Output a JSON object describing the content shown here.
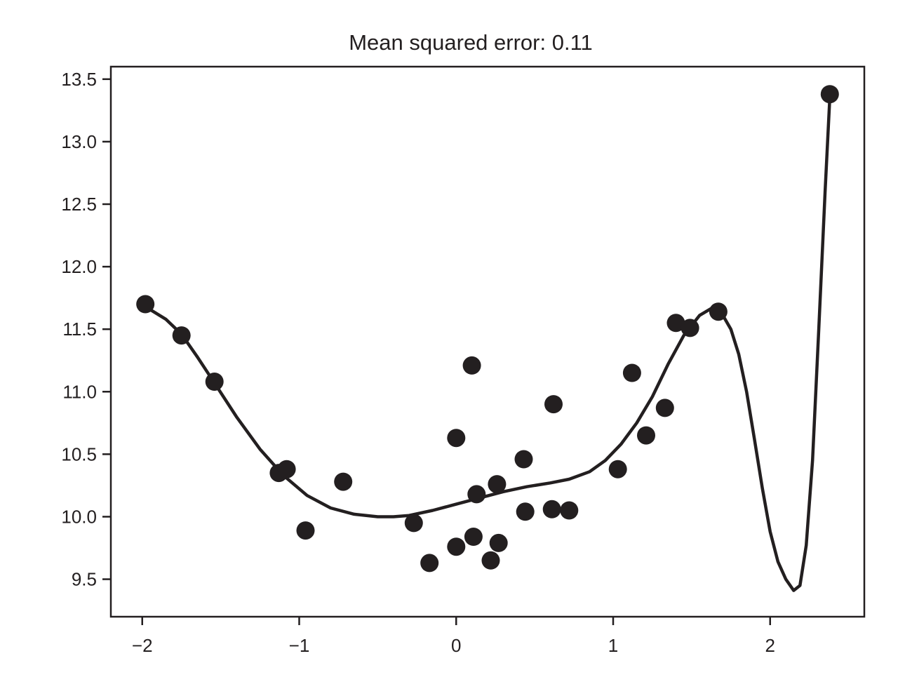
{
  "chart_data": {
    "type": "scatter",
    "title": "Mean squared error: 0.11",
    "xlabel": "",
    "ylabel": "",
    "xlim": [
      -2.2,
      2.6
    ],
    "ylim": [
      9.2,
      13.6
    ],
    "x_ticks": [
      -2,
      -1,
      0,
      1,
      2
    ],
    "x_tick_labels": [
      "−2",
      "−1",
      "0",
      "1",
      "2"
    ],
    "y_ticks": [
      9.5,
      10.0,
      10.5,
      11.0,
      11.5,
      12.0,
      12.5,
      13.0,
      13.5
    ],
    "y_tick_labels": [
      "9.5",
      "10.0",
      "10.5",
      "11.0",
      "11.5",
      "12.0",
      "12.5",
      "13.0",
      "13.5"
    ],
    "grid": false,
    "marker_color": "#231f20",
    "line_color": "#231f20",
    "series": [
      {
        "kind": "points",
        "points": [
          [
            -1.98,
            11.7
          ],
          [
            -1.75,
            11.45
          ],
          [
            -1.54,
            11.08
          ],
          [
            -1.13,
            10.35
          ],
          [
            -1.08,
            10.38
          ],
          [
            -0.96,
            9.89
          ],
          [
            -0.72,
            10.28
          ],
          [
            -0.27,
            9.95
          ],
          [
            -0.17,
            9.63
          ],
          [
            0.0,
            9.76
          ],
          [
            0.0,
            10.63
          ],
          [
            0.1,
            11.21
          ],
          [
            0.11,
            9.84
          ],
          [
            0.13,
            10.18
          ],
          [
            0.22,
            9.65
          ],
          [
            0.26,
            10.26
          ],
          [
            0.27,
            9.79
          ],
          [
            0.43,
            10.46
          ],
          [
            0.44,
            10.04
          ],
          [
            0.61,
            10.06
          ],
          [
            0.62,
            10.9
          ],
          [
            0.72,
            10.05
          ],
          [
            1.03,
            10.38
          ],
          [
            1.12,
            11.15
          ],
          [
            1.21,
            10.65
          ],
          [
            1.33,
            10.87
          ],
          [
            1.4,
            11.55
          ],
          [
            1.49,
            11.51
          ],
          [
            1.67,
            11.64
          ],
          [
            2.38,
            13.38
          ]
        ]
      },
      {
        "kind": "line",
        "points": [
          [
            -1.98,
            11.68
          ],
          [
            -1.85,
            11.58
          ],
          [
            -1.75,
            11.46
          ],
          [
            -1.65,
            11.28
          ],
          [
            -1.54,
            11.07
          ],
          [
            -1.4,
            10.8
          ],
          [
            -1.25,
            10.54
          ],
          [
            -1.1,
            10.33
          ],
          [
            -0.95,
            10.17
          ],
          [
            -0.8,
            10.07
          ],
          [
            -0.65,
            10.02
          ],
          [
            -0.5,
            10.0
          ],
          [
            -0.4,
            10.0
          ],
          [
            -0.3,
            10.01
          ],
          [
            -0.15,
            10.05
          ],
          [
            0.0,
            10.1
          ],
          [
            0.15,
            10.15
          ],
          [
            0.3,
            10.2
          ],
          [
            0.45,
            10.24
          ],
          [
            0.6,
            10.27
          ],
          [
            0.72,
            10.3
          ],
          [
            0.85,
            10.36
          ],
          [
            0.95,
            10.45
          ],
          [
            1.05,
            10.58
          ],
          [
            1.15,
            10.75
          ],
          [
            1.25,
            10.96
          ],
          [
            1.35,
            11.22
          ],
          [
            1.45,
            11.45
          ],
          [
            1.55,
            11.61
          ],
          [
            1.63,
            11.67
          ],
          [
            1.69,
            11.63
          ],
          [
            1.75,
            11.5
          ],
          [
            1.8,
            11.3
          ],
          [
            1.85,
            11.0
          ],
          [
            1.9,
            10.62
          ],
          [
            1.95,
            10.23
          ],
          [
            2.0,
            9.88
          ],
          [
            2.05,
            9.64
          ],
          [
            2.1,
            9.5
          ],
          [
            2.15,
            9.41
          ],
          [
            2.19,
            9.45
          ],
          [
            2.23,
            9.77
          ],
          [
            2.27,
            10.45
          ],
          [
            2.31,
            11.5
          ],
          [
            2.35,
            12.6
          ],
          [
            2.38,
            13.35
          ]
        ]
      }
    ]
  }
}
